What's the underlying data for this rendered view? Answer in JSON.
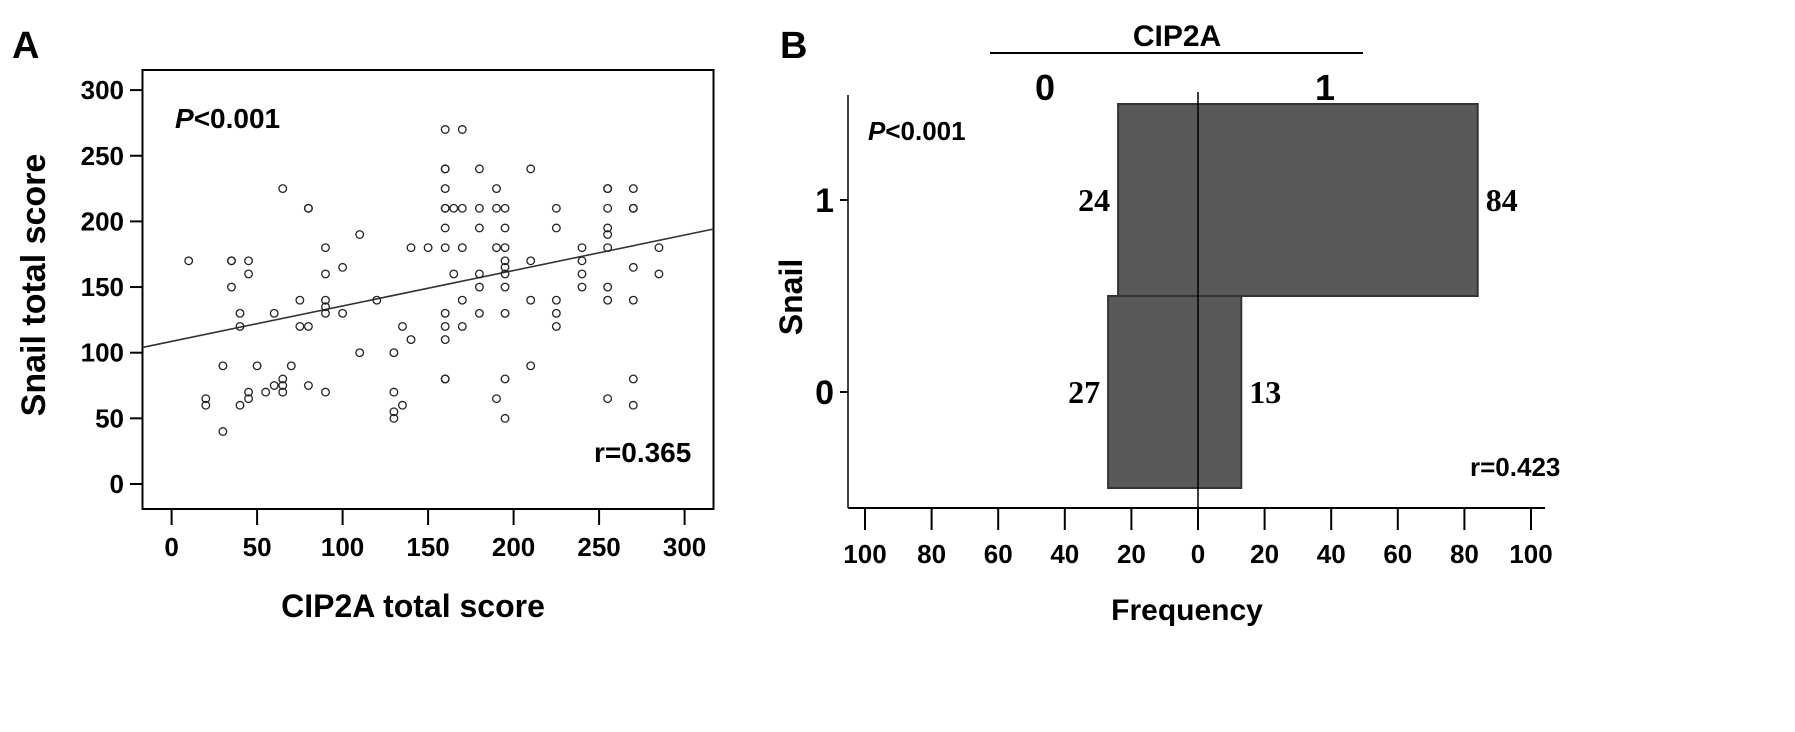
{
  "chart_data": [
    {
      "panel_label": "A",
      "type": "scatter",
      "xlabel": "CIP2A total score",
      "ylabel": "Snail total score",
      "xlim": [
        -17,
        317
      ],
      "ylim": [
        -19,
        315
      ],
      "xticks": [
        0,
        50,
        100,
        150,
        200,
        250,
        300
      ],
      "yticks": [
        0,
        50,
        100,
        150,
        200,
        250,
        300
      ],
      "grid": false,
      "annotations": {
        "p_italic": "P",
        "p_rest": "<0.001",
        "r": "r=0.365"
      },
      "fit_line": {
        "intercept": 108.6,
        "slope": 0.27
      },
      "marker": "open-circle",
      "points": [
        [
          10,
          170
        ],
        [
          35,
          170
        ],
        [
          35,
          170
        ],
        [
          45,
          170
        ],
        [
          45,
          160
        ],
        [
          35,
          150
        ],
        [
          40,
          130
        ],
        [
          40,
          120
        ],
        [
          60,
          130
        ],
        [
          65,
          225
        ],
        [
          80,
          210
        ],
        [
          80,
          210
        ],
        [
          110,
          190
        ],
        [
          90,
          180
        ],
        [
          90,
          160
        ],
        [
          100,
          165
        ],
        [
          75,
          140
        ],
        [
          90,
          140
        ],
        [
          90,
          135
        ],
        [
          90,
          130
        ],
        [
          100,
          130
        ],
        [
          120,
          140
        ],
        [
          75,
          120
        ],
        [
          80,
          120
        ],
        [
          110,
          100
        ],
        [
          30,
          90
        ],
        [
          50,
          90
        ],
        [
          70,
          90
        ],
        [
          65,
          80
        ],
        [
          65,
          75
        ],
        [
          60,
          75
        ],
        [
          80,
          75
        ],
        [
          45,
          70
        ],
        [
          45,
          65
        ],
        [
          55,
          70
        ],
        [
          65,
          70
        ],
        [
          90,
          70
        ],
        [
          20,
          65
        ],
        [
          20,
          60
        ],
        [
          40,
          60
        ],
        [
          30,
          40
        ],
        [
          160,
          270
        ],
        [
          170,
          270
        ],
        [
          160,
          240
        ],
        [
          160,
          240
        ],
        [
          180,
          240
        ],
        [
          210,
          240
        ],
        [
          160,
          225
        ],
        [
          190,
          225
        ],
        [
          255,
          225
        ],
        [
          255,
          225
        ],
        [
          160,
          210
        ],
        [
          160,
          210
        ],
        [
          165,
          210
        ],
        [
          170,
          210
        ],
        [
          180,
          210
        ],
        [
          190,
          210
        ],
        [
          195,
          210
        ],
        [
          225,
          210
        ],
        [
          255,
          210
        ],
        [
          160,
          195
        ],
        [
          180,
          195
        ],
        [
          195,
          195
        ],
        [
          225,
          195
        ],
        [
          255,
          195
        ],
        [
          255,
          190
        ],
        [
          140,
          180
        ],
        [
          150,
          180
        ],
        [
          160,
          180
        ],
        [
          170,
          180
        ],
        [
          190,
          180
        ],
        [
          195,
          180
        ],
        [
          240,
          180
        ],
        [
          255,
          180
        ],
        [
          195,
          170
        ],
        [
          210,
          170
        ],
        [
          240,
          170
        ],
        [
          195,
          165
        ],
        [
          165,
          160
        ],
        [
          180,
          160
        ],
        [
          195,
          160
        ],
        [
          240,
          160
        ],
        [
          180,
          150
        ],
        [
          195,
          150
        ],
        [
          240,
          150
        ],
        [
          255,
          150
        ],
        [
          170,
          140
        ],
        [
          210,
          140
        ],
        [
          225,
          140
        ],
        [
          255,
          140
        ],
        [
          160,
          130
        ],
        [
          180,
          130
        ],
        [
          195,
          130
        ],
        [
          225,
          130
        ],
        [
          135,
          120
        ],
        [
          160,
          120
        ],
        [
          170,
          120
        ],
        [
          225,
          120
        ],
        [
          140,
          110
        ],
        [
          160,
          110
        ],
        [
          130,
          100
        ],
        [
          210,
          90
        ],
        [
          160,
          80
        ],
        [
          160,
          80
        ],
        [
          195,
          80
        ],
        [
          130,
          70
        ],
        [
          190,
          65
        ],
        [
          255,
          65
        ],
        [
          135,
          60
        ],
        [
          130,
          55
        ],
        [
          130,
          50
        ],
        [
          195,
          50
        ],
        [
          270,
          225
        ],
        [
          270,
          210
        ],
        [
          270,
          210
        ],
        [
          270,
          165
        ],
        [
          270,
          140
        ],
        [
          285,
          180
        ],
        [
          285,
          160
        ],
        [
          270,
          80
        ],
        [
          270,
          60
        ]
      ]
    },
    {
      "panel_label": "B",
      "type": "bar",
      "orientation": "horizontal-back-to-back",
      "title": "CIP2A",
      "group_labels": [
        "0",
        "1"
      ],
      "xlabel": "Frequency",
      "ylabel": "Snail",
      "categories": [
        "1",
        "0"
      ],
      "xlim": [
        -105,
        105
      ],
      "xticks": [
        100,
        80,
        60,
        40,
        20,
        0,
        20,
        40,
        60,
        80,
        100
      ],
      "series": [
        {
          "name": "0",
          "values": [
            24,
            27
          ]
        },
        {
          "name": "1",
          "values": [
            84,
            13
          ]
        }
      ],
      "bar_color": "#595959",
      "annotations": {
        "p_italic": "P",
        "p_rest": "<0.001",
        "r": "r=0.423"
      }
    }
  ]
}
